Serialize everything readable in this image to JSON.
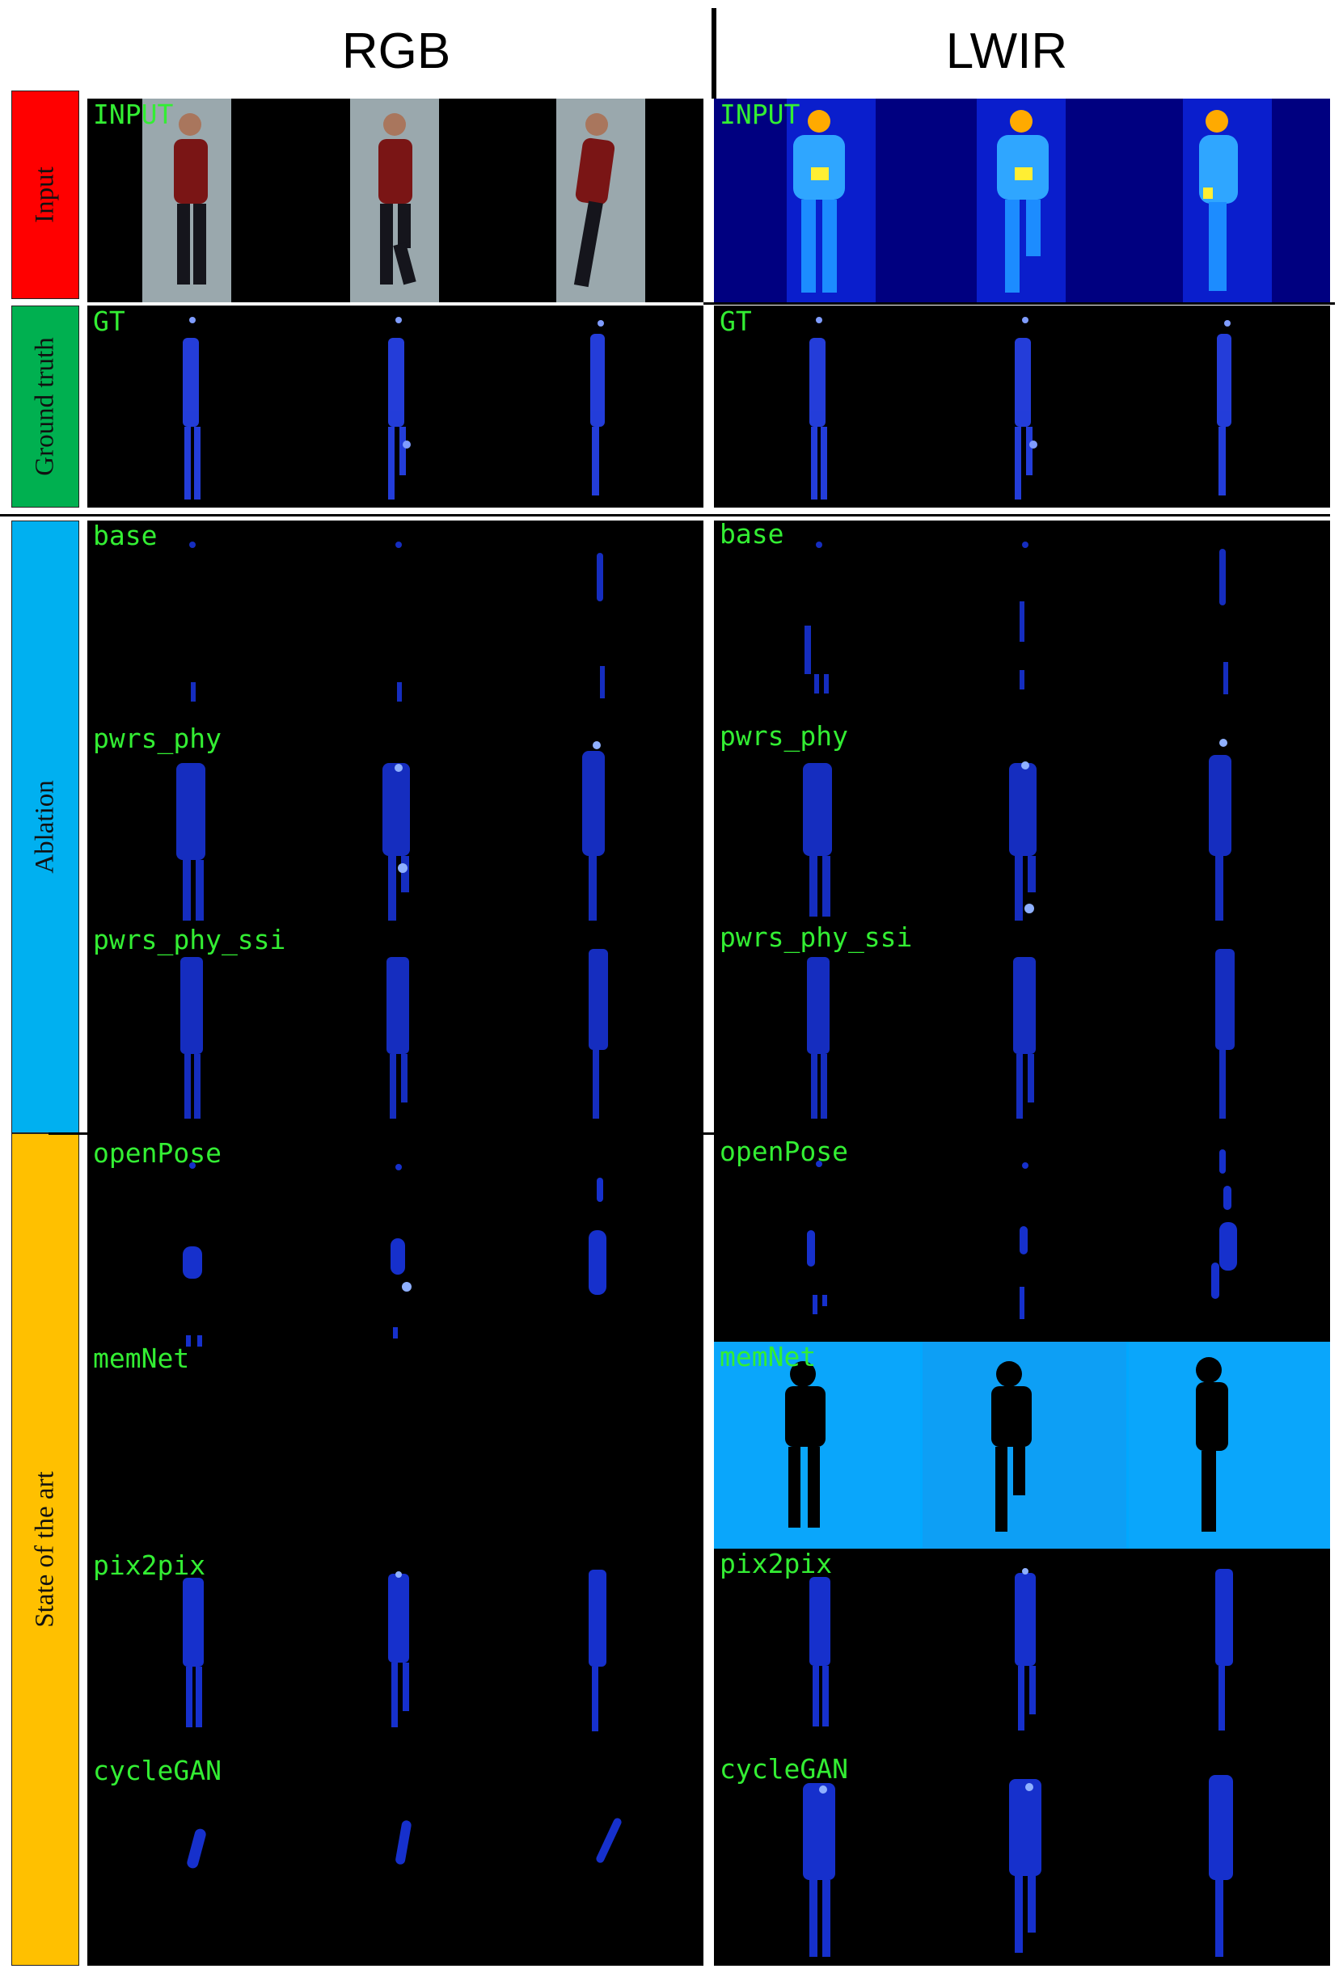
{
  "columns": {
    "rgb": "RGB",
    "lwir": "LWIR"
  },
  "rows": {
    "input": "Input",
    "ground_truth": "Ground truth",
    "ablation": "Ablation",
    "sota": "State of the art"
  },
  "tags": {
    "input": "INPUT",
    "gt": "GT",
    "base": "base",
    "pwrs_phy": "pwrs_phy",
    "pwrs_phy_ssim": "pwrs_phy_ssi",
    "openpose": "openPose",
    "memnet": "memNet",
    "pix2pix": "pix2pix",
    "cyclegan": "cycleGAN"
  },
  "colors": {
    "input_label": "#ff0000",
    "ground_truth_label": "#00b050",
    "ablation_label": "#00b0f0",
    "sota_label": "#ffc000",
    "tag_text": "#33ee33",
    "thermal_bg": "#000080",
    "memnet_bg": "#00a8ff"
  }
}
